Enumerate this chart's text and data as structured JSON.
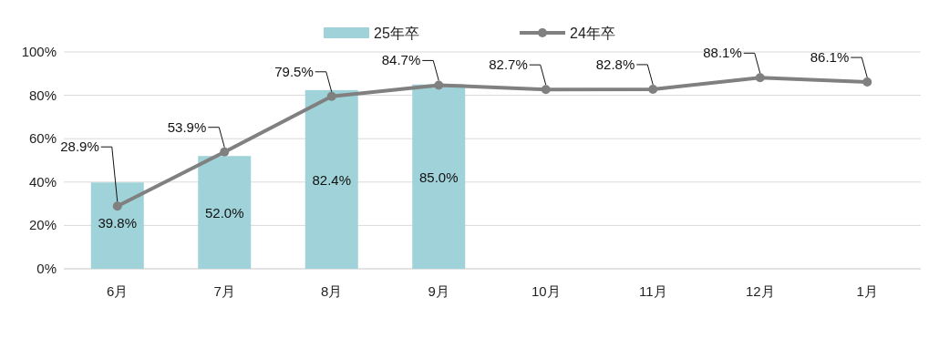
{
  "chart_data": {
    "type": "bar",
    "categories": [
      "6月",
      "7月",
      "8月",
      "9月",
      "10月",
      "11月",
      "12月",
      "1月"
    ],
    "series": [
      {
        "name": "25年卒",
        "color": "#9fd3d9",
        "values": [
          39.8,
          52.0,
          82.4,
          85.0,
          null,
          null,
          null,
          null
        ],
        "value_labels": [
          "39.8%",
          "52.0%",
          "82.4%",
          "85.0%",
          null,
          null,
          null,
          null
        ]
      },
      {
        "name": "24年卒",
        "type": "line",
        "color": "#808080",
        "marker": "circle",
        "values": [
          28.9,
          53.9,
          79.5,
          84.7,
          82.7,
          82.8,
          88.1,
          86.1
        ],
        "value_labels": [
          "28.9%",
          "53.9%",
          "79.5%",
          "84.7%",
          "82.7%",
          "82.8%",
          "88.1%",
          "86.1%"
        ]
      }
    ],
    "ylim": [
      0,
      100
    ],
    "yticks": [
      {
        "value": 0,
        "label": "0%"
      },
      {
        "value": 20,
        "label": "20%"
      },
      {
        "value": 40,
        "label": "40%"
      },
      {
        "value": 60,
        "label": "60%"
      },
      {
        "value": 80,
        "label": "80%"
      },
      {
        "value": 100,
        "label": "100%"
      }
    ],
    "grid": "y",
    "legend": "top"
  }
}
